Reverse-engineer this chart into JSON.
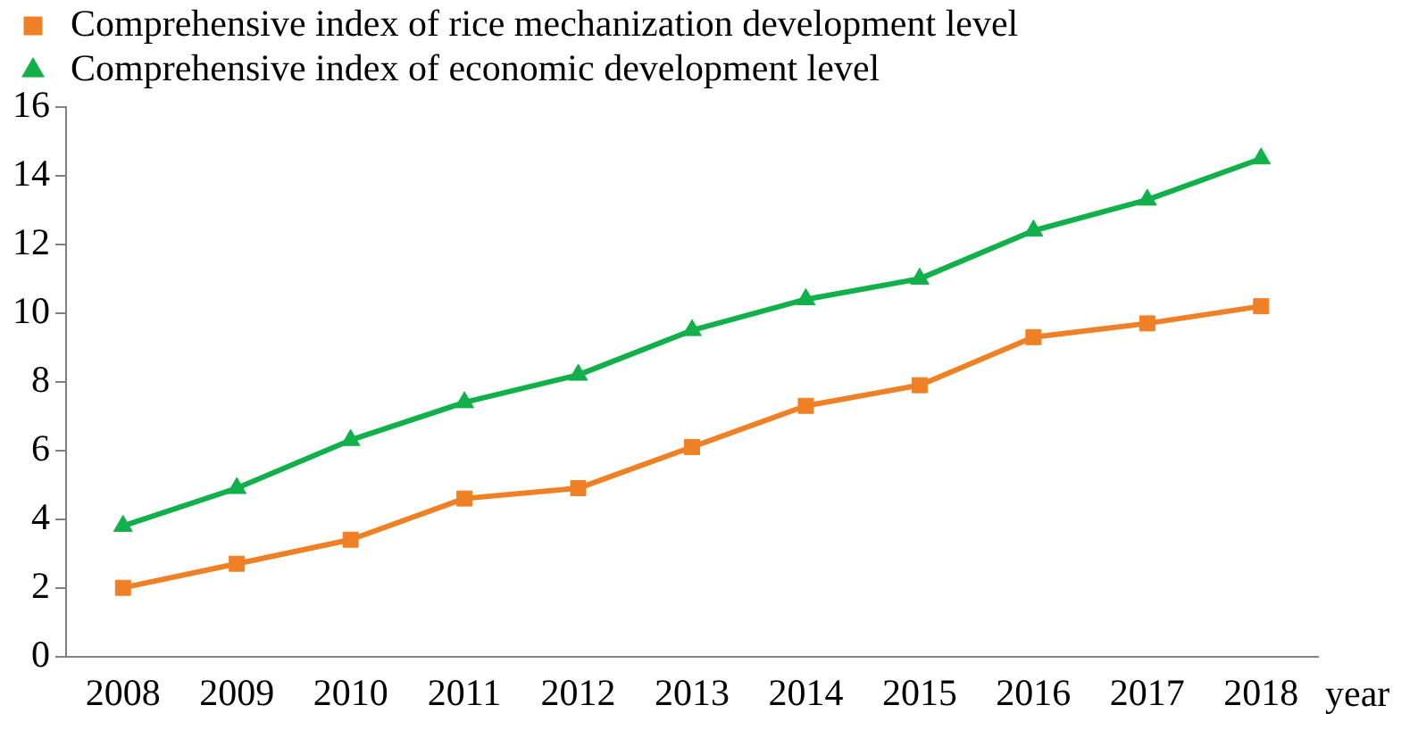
{
  "chart_data": {
    "type": "line",
    "xlabel": "year",
    "categories": [
      "2008",
      "2009",
      "2010",
      "2011",
      "2012",
      "2013",
      "2014",
      "2015",
      "2016",
      "2017",
      "2018"
    ],
    "series": [
      {
        "name": "Comprehensive index of rice mechanization development level",
        "color": "#f08025",
        "marker": "square",
        "values": [
          2.0,
          2.7,
          3.4,
          4.6,
          4.9,
          6.1,
          7.3,
          7.9,
          9.3,
          9.7,
          10.2
        ]
      },
      {
        "name": "Comprehensive index of economic development level",
        "color": "#12b04a",
        "marker": "triangle",
        "values": [
          3.8,
          4.9,
          6.3,
          7.4,
          8.2,
          9.5,
          10.4,
          11.0,
          12.4,
          13.3,
          14.5
        ]
      }
    ],
    "ylim": [
      0,
      16
    ],
    "yticks": [
      0,
      2,
      4,
      6,
      8,
      10,
      12,
      14,
      16
    ],
    "grid": false,
    "legend": "top left",
    "line_style": "solid"
  }
}
